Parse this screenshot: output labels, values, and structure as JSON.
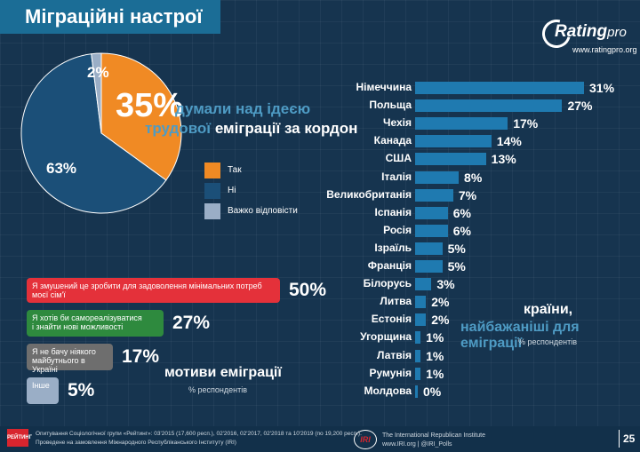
{
  "title": "Міграційні настрої",
  "logo": {
    "name": "Rating",
    "suffix": "pro",
    "url": "www.ratingpro.org"
  },
  "headline": {
    "pct": "35%",
    "line1": "думали над ідеєю",
    "line2_muted": "трудової",
    "line2_rest": " еміграції за кордон"
  },
  "chart_data": [
    {
      "type": "pie",
      "title": "думали над ідеєю трудової еміграції за кордон",
      "slices": [
        {
          "label": "Так",
          "value": 35,
          "display": "35%",
          "color": "#f08a24"
        },
        {
          "label": "Ні",
          "value": 63,
          "display": "63%",
          "color": "#1b4f78"
        },
        {
          "label": "Важко відповісти",
          "value": 2,
          "display": "2%",
          "color": "#9aaec6"
        }
      ]
    },
    {
      "type": "bar",
      "title": "мотиви еміграції",
      "subtitle": "% респондентів",
      "series": [
        {
          "name": "мотиви",
          "values": [
            50,
            27,
            17,
            5
          ]
        }
      ],
      "categories": [
        "Я змушений це зробити для задоволення мінімальних потреб моєї сім'ї",
        "Я хотів би самореалізуватися\nі знайти нові можливості",
        "Я не бачу ніякого\nмайбутнього в Україні",
        "Інше"
      ],
      "display": [
        "50%",
        "27%",
        "17%",
        "5%"
      ],
      "colors": [
        "#e4313a",
        "#2e8a3e",
        "#6e6e6e",
        "#9aaec6"
      ]
    },
    {
      "type": "bar",
      "orientation": "horizontal",
      "title": "країни, найбажаніші для еміграції",
      "subtitle": "% респондентів",
      "categories": [
        "Німеччина",
        "Польща",
        "Чехія",
        "Канада",
        "США",
        "Італія",
        "Великобританія",
        "Іспанія",
        "Росія",
        "Ізраїль",
        "Франція",
        "Білорусь",
        "Литва",
        "Естонія",
        "Угорщина",
        "Латвія",
        "Румунія",
        "Молдова"
      ],
      "values": [
        31,
        27,
        17,
        14,
        13,
        8,
        7,
        6,
        6,
        5,
        5,
        3,
        2,
        2,
        1,
        1,
        1,
        0
      ],
      "display": [
        "31%",
        "27%",
        "17%",
        "14%",
        "13%",
        "8%",
        "7%",
        "6%",
        "6%",
        "5%",
        "5%",
        "3%",
        "2%",
        "2%",
        "1%",
        "1%",
        "1%",
        "0%"
      ],
      "xlim": [
        0,
        31
      ]
    }
  ],
  "countries_title": {
    "line1": "країни,",
    "line2": "найбажаніші для еміграції",
    "sub": "% респондентів"
  },
  "motives_title": {
    "line1": "мотиви еміграції",
    "sub": "% респондентів"
  },
  "footer": {
    "logo": "РЕЙТИНГ",
    "note1": "Опитування Соціологічної групи «Рейтинг»: 03'2015 (17,600 респ.), 02'2016, 02'2017, 02'2018 та 10'2019 (по 19,200 респ.).",
    "note2": "Проведене на замовлення Міжнародного Республіканського Інституту (IRI)",
    "iri_mark": "IRI",
    "iri_line1": "The International Republican Institute",
    "iri_line2": "www.IRI.org | @IRI_Polls",
    "page": "25"
  }
}
